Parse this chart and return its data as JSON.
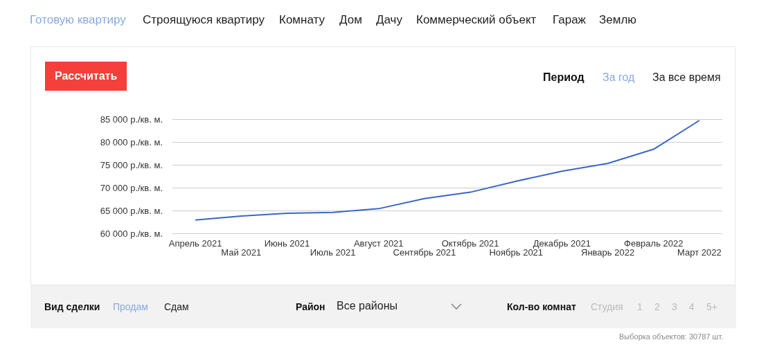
{
  "chart_data": {
    "type": "line",
    "categories": [
      "Апрель 2021",
      "Май 2021",
      "Июнь 2021",
      "Июль 2021",
      "Август 2021",
      "Сентябрь 2021",
      "Октябрь 2021",
      "Ноябрь 2021",
      "Декабрь 2021",
      "Январь 2022",
      "Февраль 2022",
      "Март 2022"
    ],
    "series": [
      {
        "color": "#3a66c4",
        "values": [
          62900,
          63800,
          64400,
          64600,
          65400,
          67600,
          69000,
          71400,
          73600,
          75300,
          78400,
          84700
        ]
      }
    ],
    "ylim": [
      60000,
      85000
    ],
    "yticks": [
      {
        "value": 60000,
        "label": "60 000 р./кв. м."
      },
      {
        "value": 65000,
        "label": "65 000 р./кв. м."
      },
      {
        "value": 70000,
        "label": "70 000 р./кв. м."
      },
      {
        "value": 75000,
        "label": "75 000 р./кв. м."
      },
      {
        "value": 80000,
        "label": "80 000 р./кв. м."
      },
      {
        "value": 85000,
        "label": "85 000 р./кв. м."
      }
    ],
    "grid": "y",
    "marker": "none",
    "annotations": [
      "Готовую квартиру",
      "Строящуюся квартиру",
      "Комнату",
      "Дом",
      "Дачу",
      "Коммерческий объект",
      "Гараж",
      "Землю",
      "Рассчитать",
      "Период",
      "За год",
      "За все время",
      "Вид сделки",
      "Продам",
      "Сдам",
      "Район",
      "Все районы",
      "Кол-во комнат",
      "Студия",
      "1",
      "2",
      "3",
      "4",
      "5+",
      "Выборка объектов: 30787 шт."
    ]
  }
}
